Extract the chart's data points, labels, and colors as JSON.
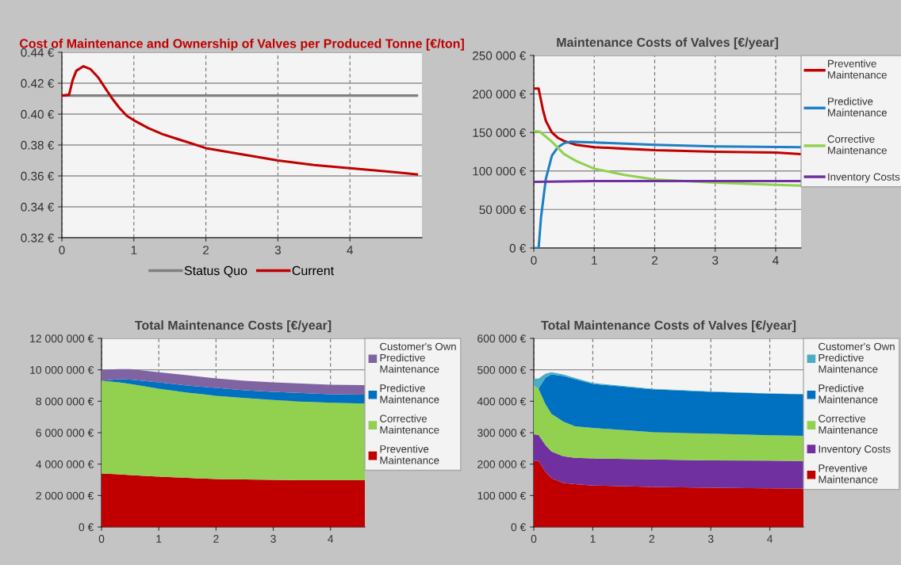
{
  "chart_data": [
    {
      "type": "line",
      "title": "Cost of Maintenance and Ownership of Valves per Produced Tonne [€/ton]",
      "xlim": [
        0,
        5
      ],
      "xticks": [
        0,
        1,
        2,
        3,
        4
      ],
      "ylim": [
        0.32,
        0.44
      ],
      "yticks": [
        {
          "value": 0.32,
          "label": "0.32 €"
        },
        {
          "value": 0.34,
          "label": "0.34 €"
        },
        {
          "value": 0.36,
          "label": "0.36 €"
        },
        {
          "value": 0.38,
          "label": "0.38 €"
        },
        {
          "value": 0.4,
          "label": "0.40 €"
        },
        {
          "value": 0.42,
          "label": "0.42 €"
        },
        {
          "value": 0.44,
          "label": "0.44 €"
        }
      ],
      "grid": true,
      "legend": "bottom",
      "series": [
        {
          "name": "Status Quo",
          "color": "#808080",
          "x": [
            0,
            4.93
          ],
          "values": [
            0.412,
            0.412
          ]
        },
        {
          "name": "Current",
          "color": "#c00000",
          "x": [
            0,
            0.1,
            0.15,
            0.2,
            0.3,
            0.4,
            0.5,
            0.6,
            0.7,
            0.8,
            0.9,
            1.0,
            1.2,
            1.4,
            1.6,
            1.8,
            2.0,
            2.5,
            3.0,
            3.5,
            4.0,
            4.5,
            4.93
          ],
          "values": [
            0.412,
            0.4125,
            0.422,
            0.428,
            0.431,
            0.429,
            0.424,
            0.417,
            0.41,
            0.404,
            0.399,
            0.396,
            0.391,
            0.387,
            0.384,
            0.381,
            0.378,
            0.374,
            0.37,
            0.367,
            0.365,
            0.363,
            0.361
          ]
        }
      ]
    },
    {
      "type": "line",
      "title": "Maintenance Costs of Valves [€/year]",
      "xlim": [
        0,
        4.42
      ],
      "xticks": [
        0,
        1,
        2,
        3,
        4
      ],
      "ylim": [
        0,
        250000
      ],
      "yticks": [
        {
          "value": 0,
          "label": "0 €"
        },
        {
          "value": 50000,
          "label": "50 000 €"
        },
        {
          "value": 100000,
          "label": "100 000 €"
        },
        {
          "value": 150000,
          "label": "150 000 €"
        },
        {
          "value": 200000,
          "label": "200 000 €"
        },
        {
          "value": 250000,
          "label": "250 000 €"
        }
      ],
      "grid": true,
      "legend": "right",
      "series": [
        {
          "name": "Preventive Maintenance",
          "color": "#c00000",
          "x": [
            0,
            0.08,
            0.15,
            0.2,
            0.3,
            0.4,
            0.5,
            0.7,
            1.0,
            1.5,
            2,
            3,
            4,
            4.42
          ],
          "values": [
            207000,
            207000,
            180000,
            165000,
            150000,
            143000,
            139000,
            134000,
            131000,
            129000,
            127000,
            125000,
            124000,
            122000
          ]
        },
        {
          "name": "Predictive Maintenance",
          "color": "#1f7fc4",
          "x": [
            0,
            0.08,
            0.12,
            0.2,
            0.3,
            0.4,
            0.5,
            0.6,
            1.0,
            2,
            3,
            4.42
          ],
          "values": [
            0,
            0,
            40000,
            90000,
            120000,
            131000,
            136000,
            138000,
            137000,
            134000,
            132000,
            131000
          ]
        },
        {
          "name": "Corrective Maintenance",
          "color": "#92d050",
          "x": [
            0,
            0.1,
            0.3,
            0.5,
            0.7,
            1.0,
            1.5,
            2,
            2.5,
            3,
            4,
            4.42
          ],
          "values": [
            152000,
            151000,
            138000,
            122000,
            113000,
            103000,
            95000,
            89000,
            87000,
            85000,
            82000,
            81000
          ]
        },
        {
          "name": "Inventory Costs",
          "color": "#7030a0",
          "x": [
            0,
            1,
            4.42
          ],
          "values": [
            86000,
            87000,
            87000
          ]
        }
      ]
    },
    {
      "type": "area",
      "stacked": true,
      "title": "Total Maintenance Costs [€/year]",
      "x": [
        0,
        0.3,
        0.5,
        1,
        1.5,
        2,
        2.5,
        3,
        3.5,
        4,
        4.6
      ],
      "xlim": [
        0,
        4.6
      ],
      "xticks": [
        0,
        1,
        2,
        3,
        4
      ],
      "ylim": [
        0,
        12000000
      ],
      "yticks": [
        {
          "value": 0,
          "label": "0 €"
        },
        {
          "value": 2000000,
          "label": "2 000 000 €"
        },
        {
          "value": 4000000,
          "label": "4 000 000 €"
        },
        {
          "value": 6000000,
          "label": "6 000 000 €"
        },
        {
          "value": 8000000,
          "label": "8 000 000 €"
        },
        {
          "value": 10000000,
          "label": "10 000 000 €"
        },
        {
          "value": 12000000,
          "label": "12 000 000 €"
        }
      ],
      "grid": true,
      "legend": "right",
      "series": [
        {
          "name": "Preventive Maintenance",
          "color": "#c00000",
          "values": [
            3400000,
            3350000,
            3300000,
            3200000,
            3120000,
            3050000,
            3020000,
            3000000,
            2980000,
            2970000,
            2970000
          ]
        },
        {
          "name": "Corrective Maintenance",
          "color": "#92d050",
          "values": [
            5900000,
            5850000,
            5800000,
            5600000,
            5430000,
            5300000,
            5180000,
            5080000,
            5000000,
            4930000,
            4880000
          ]
        },
        {
          "name": "Predictive Maintenance",
          "color": "#0070c0",
          "values": [
            0,
            200000,
            280000,
            400000,
            450000,
            500000,
            500000,
            520000,
            540000,
            550000,
            570000
          ]
        },
        {
          "name": "Customer's Own Predictive Maintenance",
          "color": "#8064a2",
          "values": [
            700000,
            650000,
            670000,
            650000,
            650000,
            600000,
            600000,
            600000,
            600000,
            600000,
            600000
          ]
        }
      ]
    },
    {
      "type": "area",
      "stacked": true,
      "title": "Total Maintenance Costs of Valves [€/year]",
      "x": [
        0,
        0.08,
        0.2,
        0.3,
        0.5,
        0.7,
        1,
        2,
        3,
        4,
        4.57
      ],
      "xlim": [
        0,
        4.57
      ],
      "xticks": [
        0,
        1,
        2,
        3,
        4
      ],
      "ylim": [
        0,
        600000
      ],
      "yticks": [
        {
          "value": 0,
          "label": "0 €"
        },
        {
          "value": 100000,
          "label": "100 000 €"
        },
        {
          "value": 200000,
          "label": "200 000 €"
        },
        {
          "value": 300000,
          "label": "300 000 €"
        },
        {
          "value": 400000,
          "label": "400 000 €"
        },
        {
          "value": 500000,
          "label": "500 000 €"
        },
        {
          "value": 600000,
          "label": "600 000 €"
        }
      ],
      "grid": true,
      "legend": "right",
      "series": [
        {
          "name": "Preventive Maintenance",
          "color": "#c00000",
          "values": [
            210000,
            210000,
            175000,
            155000,
            140000,
            136000,
            132000,
            127000,
            125000,
            123000,
            122000
          ]
        },
        {
          "name": "Inventory Costs",
          "color": "#7030a0",
          "values": [
            85000,
            83000,
            85000,
            85000,
            85000,
            84000,
            86000,
            88000,
            87000,
            88000,
            88000
          ]
        },
        {
          "name": "Corrective Maintenance",
          "color": "#92d050",
          "values": [
            155000,
            147000,
            130000,
            120000,
            110000,
            100000,
            97000,
            87000,
            85000,
            81000,
            80000
          ]
        },
        {
          "name": "Predictive Maintenance",
          "color": "#0070c0",
          "values": [
            0,
            0,
            85000,
            125000,
            145000,
            150000,
            140000,
            136000,
            133000,
            132000,
            132000
          ]
        },
        {
          "name": "Customer's Own Predictive Maintenance",
          "color": "#4bacc6",
          "values": [
            22000,
            32000,
            13000,
            7000,
            5000,
            4000,
            3000,
            2000,
            1000,
            1000,
            1000
          ]
        }
      ]
    }
  ]
}
